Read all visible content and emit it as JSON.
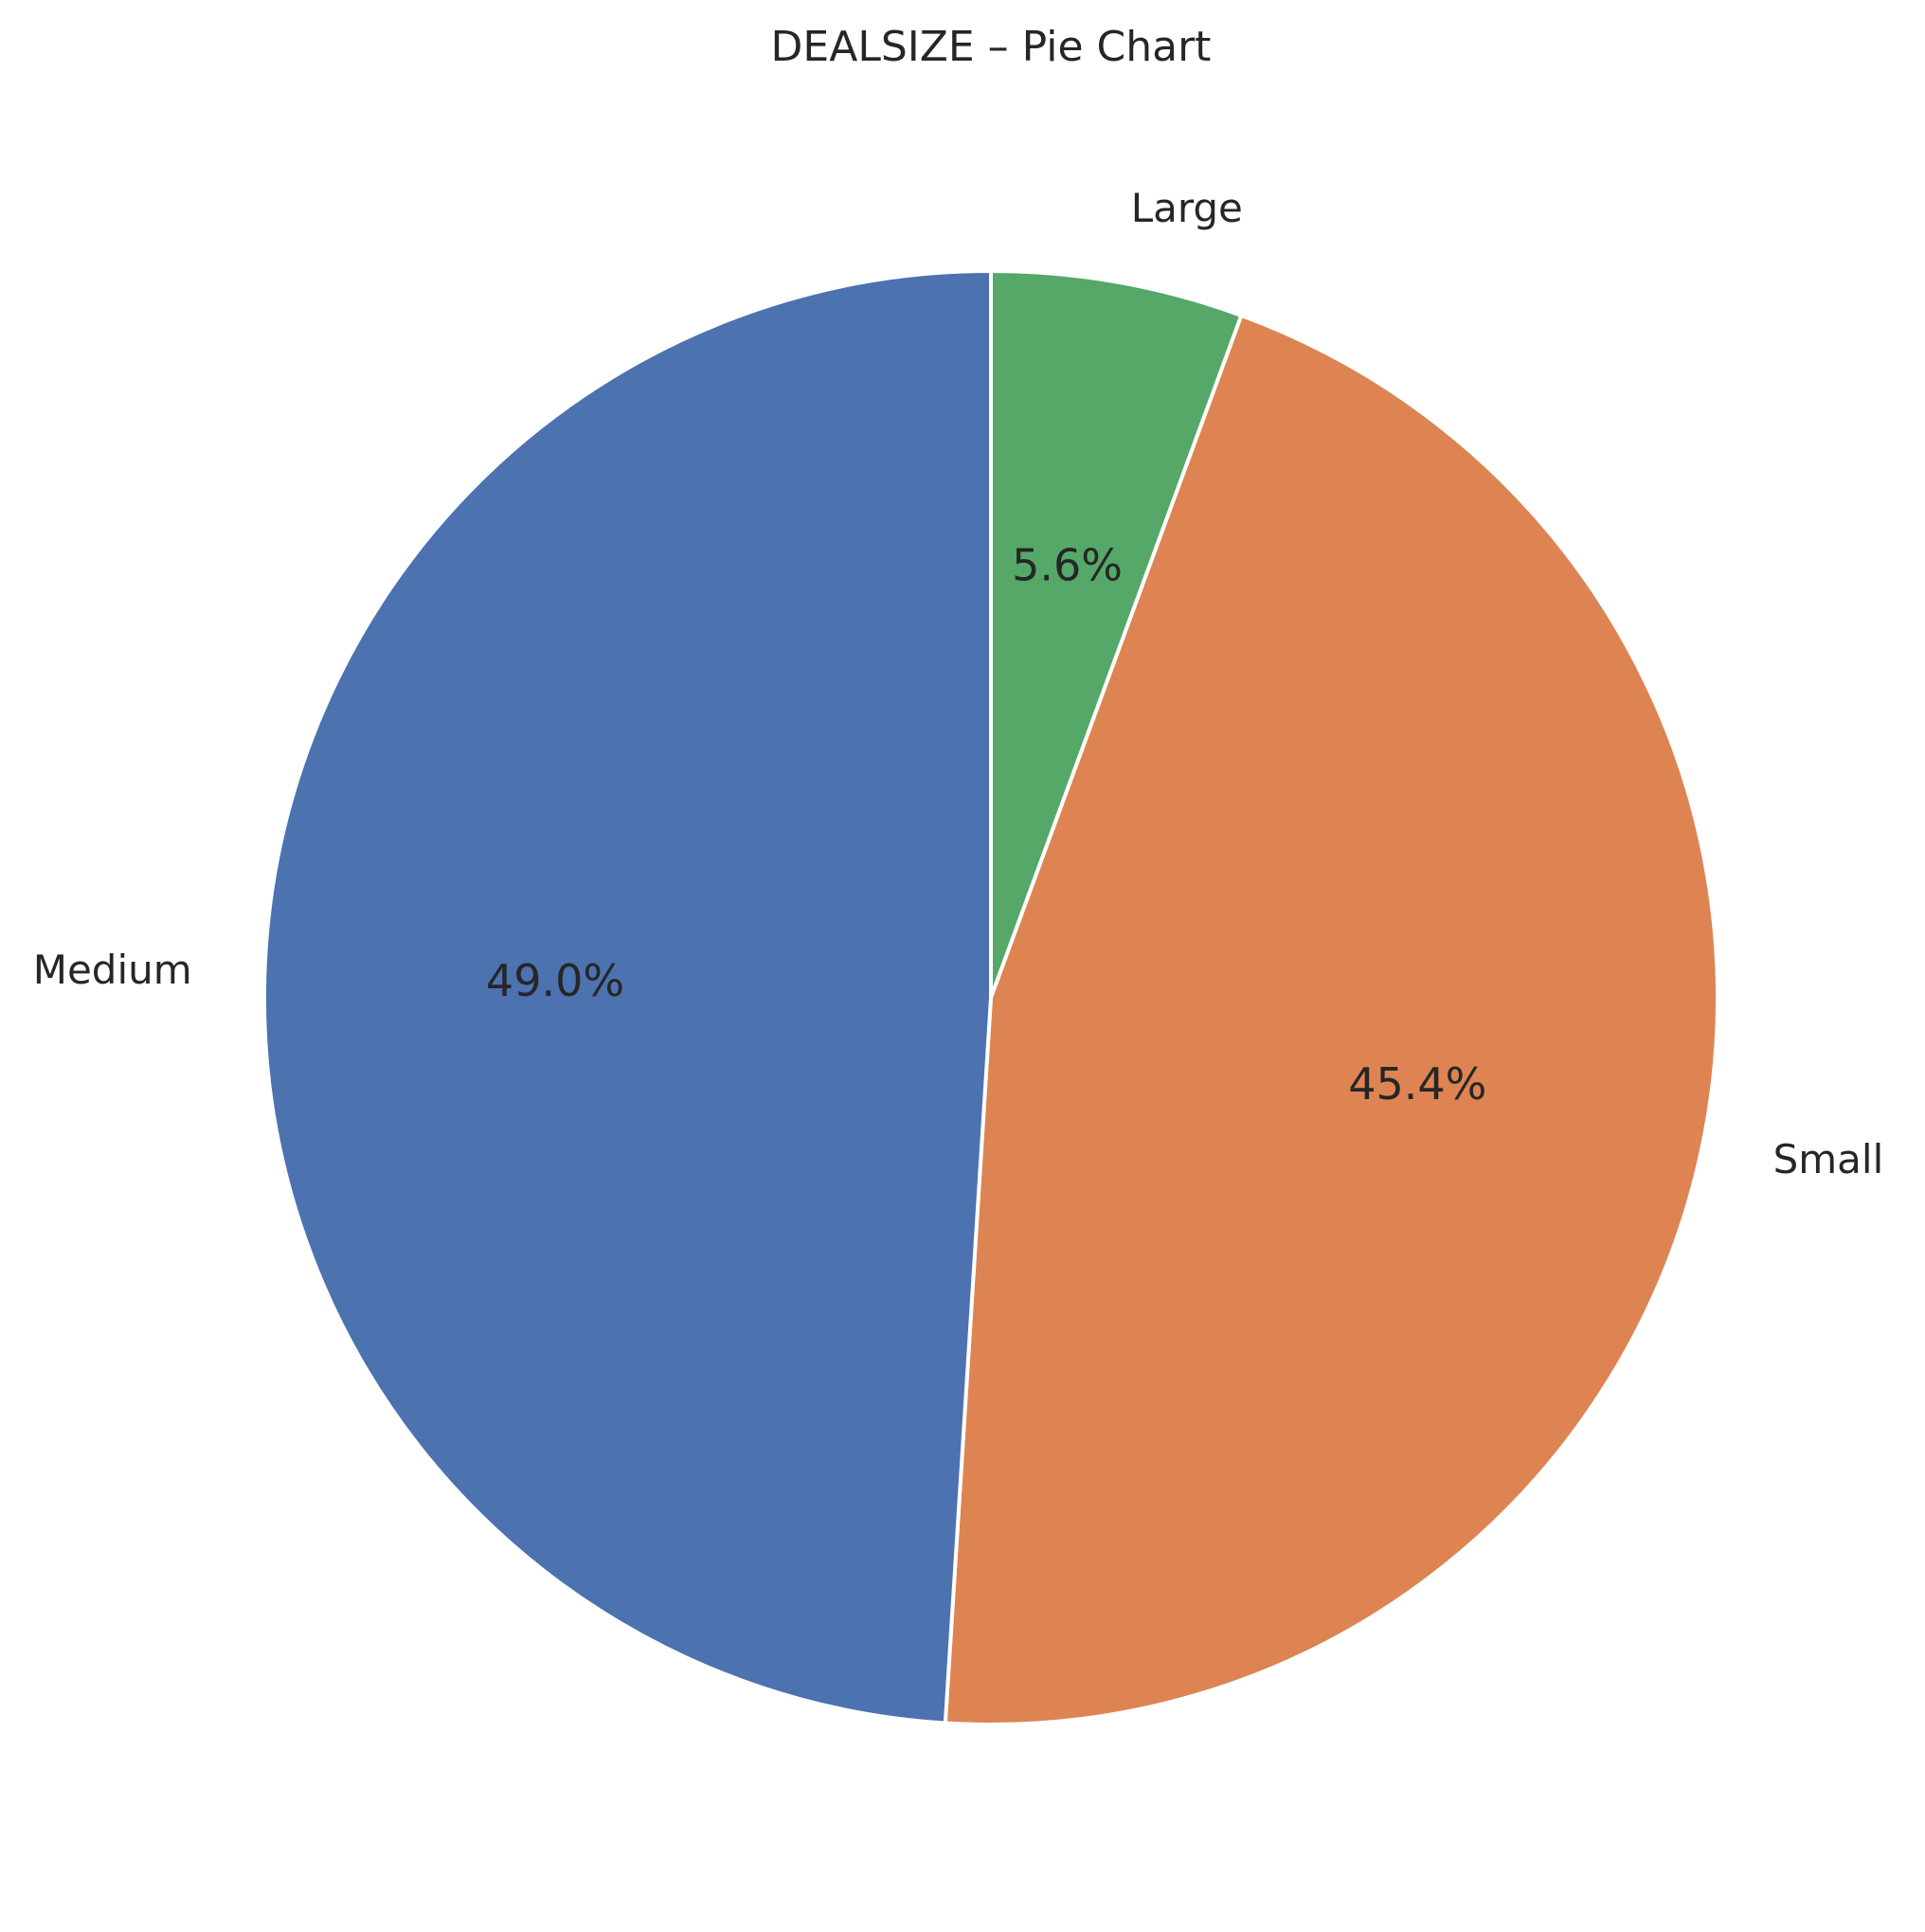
{
  "chart_data": {
    "type": "pie",
    "title": "DEALSIZE – Pie Chart",
    "start_angle_deg": 90,
    "direction": "clockwise",
    "slices": [
      {
        "label": "Large",
        "value": 5.6,
        "pct_label": "5.6%",
        "color": "#55a868"
      },
      {
        "label": "Small",
        "value": 45.4,
        "pct_label": "45.4%",
        "color": "#dd8452"
      },
      {
        "label": "Medium",
        "value": 49.0,
        "pct_label": "49.0%",
        "color": "#4c72b0"
      }
    ]
  }
}
